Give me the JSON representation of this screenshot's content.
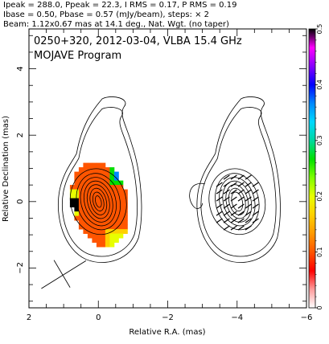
{
  "header": {
    "line1": "Ipeak = 288.0, Ppeak = 22.3, I RMS = 0.17, P RMS = 0.19",
    "line2": "Ibase = 0.50, Pbase = 0.57 (mJy/beam), steps: × 2",
    "line3": "Beam: 1.12x0.67 mas at 14.1 deg., Nat. Wgt. (no taper)"
  },
  "plot": {
    "title_line1": "0250+320, 2012-03-04, VLBA 15.4 GHz",
    "title_line2": "MOJAVE Program",
    "xlabel": "Relative R.A. (mas)",
    "ylabel": "Relative Declination (mas)"
  },
  "chart_data": {
    "type": "heatmap",
    "source": "0250+320",
    "date": "2012-03-04",
    "instrument": "VLBA 15.4 GHz",
    "program": "MOJAVE Program",
    "Ipeak": 288.0,
    "Ppeak": 22.3,
    "I_RMS": 0.17,
    "P_RMS": 0.19,
    "Ibase": 0.5,
    "Pbase": 0.57,
    "flux_unit": "mJy/beam",
    "contour_step_factor": 2,
    "beam": {
      "major_mas": 1.12,
      "minor_mas": 0.67,
      "pa_deg": 14.1,
      "weighting": "Nat. Wgt. (no taper)"
    },
    "xlim": [
      2,
      -6
    ],
    "ylim": [
      -3.2,
      5.2
    ],
    "x_ticks": [
      2,
      0,
      -2,
      -4,
      -6
    ],
    "y_ticks": [
      -2,
      0,
      2,
      4
    ],
    "colorbar": {
      "min": 0,
      "max": 0.5,
      "ticks": [
        0,
        0.1,
        0.2,
        0.3,
        0.4,
        0.5
      ],
      "colors": [
        "#ffffff",
        "#ff9a9a",
        "#ff0000",
        "#ff5500",
        "#ff9900",
        "#ffd000",
        "#e8ff00",
        "#7dff00",
        "#00e000",
        "#00d8a0",
        "#00d8ff",
        "#0088ff",
        "#0000ff",
        "#8a00ff",
        "#ff00ff",
        "#000000"
      ]
    },
    "left_panel": {
      "center": [
        0,
        0
      ],
      "contours": [
        {
          "rx": 0.8,
          "ry": 1.0,
          "rot": -14
        },
        {
          "rx": 0.62,
          "ry": 0.86,
          "rot": -14
        },
        {
          "rx": 0.5,
          "ry": 0.74,
          "rot": -14
        },
        {
          "rx": 0.4,
          "ry": 0.63,
          "rot": -14
        },
        {
          "rx": 0.31,
          "ry": 0.52,
          "rot": -14
        },
        {
          "rx": 0.23,
          "ry": 0.41,
          "rot": -14
        },
        {
          "rx": 0.15,
          "ry": 0.29,
          "rot": -14
        },
        {
          "rx": 0.08,
          "ry": 0.18,
          "rot": -14
        }
      ],
      "frac_pol_ellipse": {
        "rx": 0.82,
        "ry": 1.3,
        "rot": -14
      }
    },
    "right_panel": {
      "center": [
        -4,
        0
      ],
      "contours": [
        {
          "rx": 0.8,
          "ry": 1.0,
          "rot": -14
        },
        {
          "rx": 0.62,
          "ry": 0.86,
          "rot": -14
        },
        {
          "rx": 0.5,
          "ry": 0.74,
          "rot": -14
        },
        {
          "rx": 0.4,
          "ry": 0.63,
          "rot": -14
        },
        {
          "rx": 0.31,
          "ry": 0.52,
          "rot": -14
        },
        {
          "rx": 0.23,
          "ry": 0.41,
          "rot": -14
        },
        {
          "rx": 0.15,
          "ry": 0.29,
          "rot": -14
        }
      ]
    }
  }
}
